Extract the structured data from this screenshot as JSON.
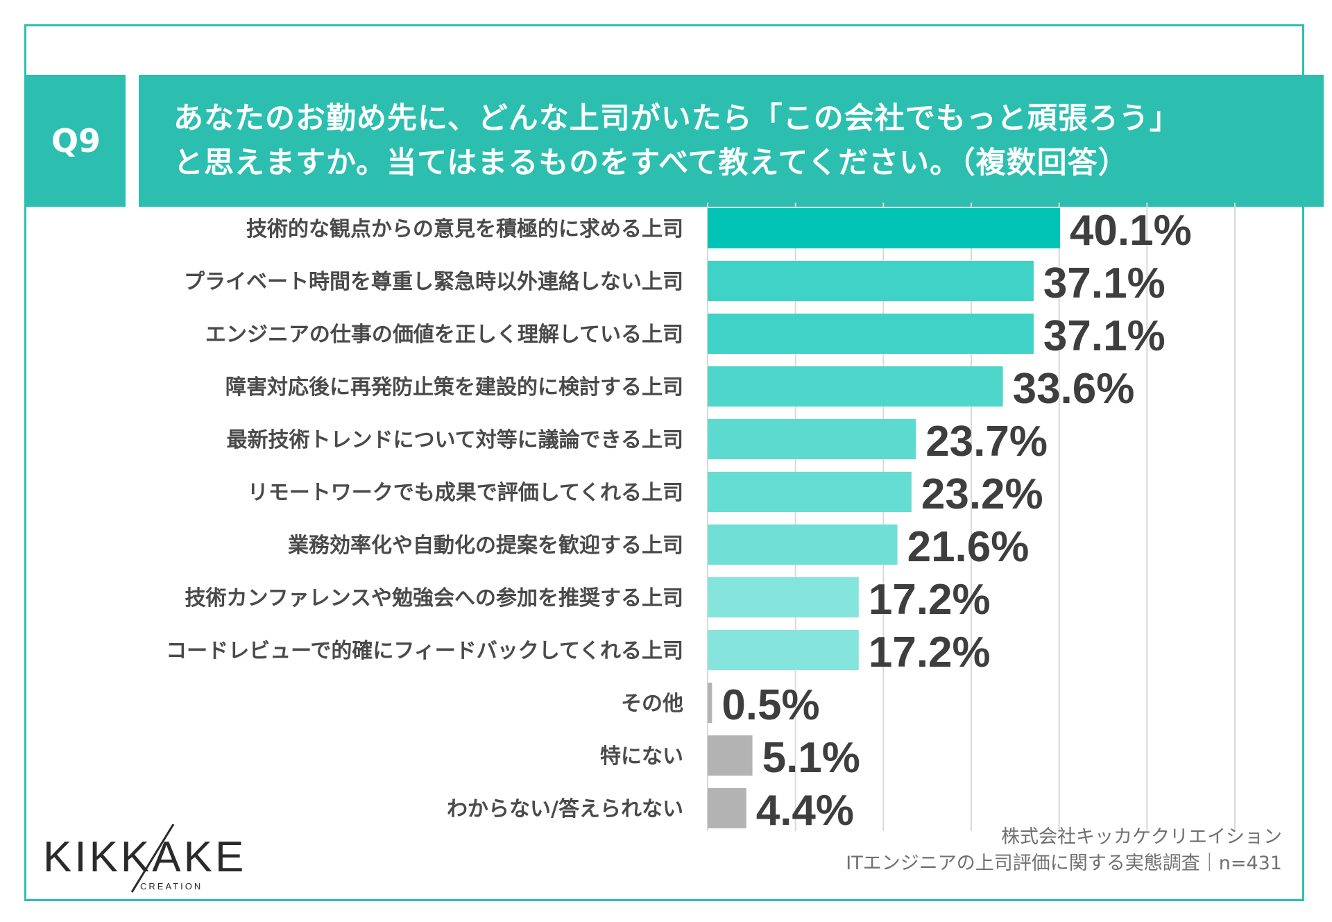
{
  "header": {
    "q_label": "Q9",
    "title_line1": "あなたのお勤め先に、どんな上司がいたら「この会社でもっと頑張ろう」",
    "title_line2": "と思えますか。当てはまるものをすべて教えてください。（複数回答）"
  },
  "colors": {
    "accent": "#2cbfb0",
    "bar_gray": "#b3b3b3",
    "label_text": "#4a4a4a",
    "value_text": "#3e3e3e",
    "grid": "#d9d9d9"
  },
  "chart_data": {
    "type": "bar",
    "orientation": "horizontal",
    "categories": [
      "技術的な観点からの意見を積極的に求める上司",
      "プライベート時間を尊重し緊急時以外連絡しない上司",
      "エンジニアの仕事の価値を正しく理解している上司",
      "障害対応後に再発防止策を建設的に検討する上司",
      "最新技術トレンドについて対等に議論できる上司",
      "リモートワークでも成果で評価してくれる上司",
      "業務効率化や自動化の提案を歓迎する上司",
      "技術カンファレンスや勉強会への参加を推奨する上司",
      "コードレビューで的確にフィードバックしてくれる上司",
      "その他",
      "特にない",
      "わからない/答えられない"
    ],
    "values": [
      40.1,
      37.1,
      37.1,
      33.6,
      23.7,
      23.2,
      21.6,
      17.2,
      17.2,
      0.5,
      5.1,
      4.4
    ],
    "value_labels": [
      "40.1%",
      "37.1%",
      "37.1%",
      "33.6%",
      "23.7%",
      "23.2%",
      "21.6%",
      "17.2%",
      "17.2%",
      "0.5%",
      "5.1%",
      "4.4%"
    ],
    "bar_colors": [
      "#00c3b5",
      "#3fd2c6",
      "#3fd2c6",
      "#4ed6ca",
      "#5cdad0",
      "#66ddd3",
      "#70e0d7",
      "#85e5dd",
      "#85e5dd",
      "#b3b3b3",
      "#b3b3b3",
      "#b3b3b3"
    ],
    "xlim": [
      0,
      60
    ],
    "grid": true,
    "legend": "none"
  },
  "footer": {
    "company": "株式会社キッカケクリエイション",
    "survey": "ITエンジニアの上司評価に関する実態調査｜n=431"
  },
  "logo": {
    "wordmark": "KIKKAKE",
    "sub": "CREATION"
  }
}
